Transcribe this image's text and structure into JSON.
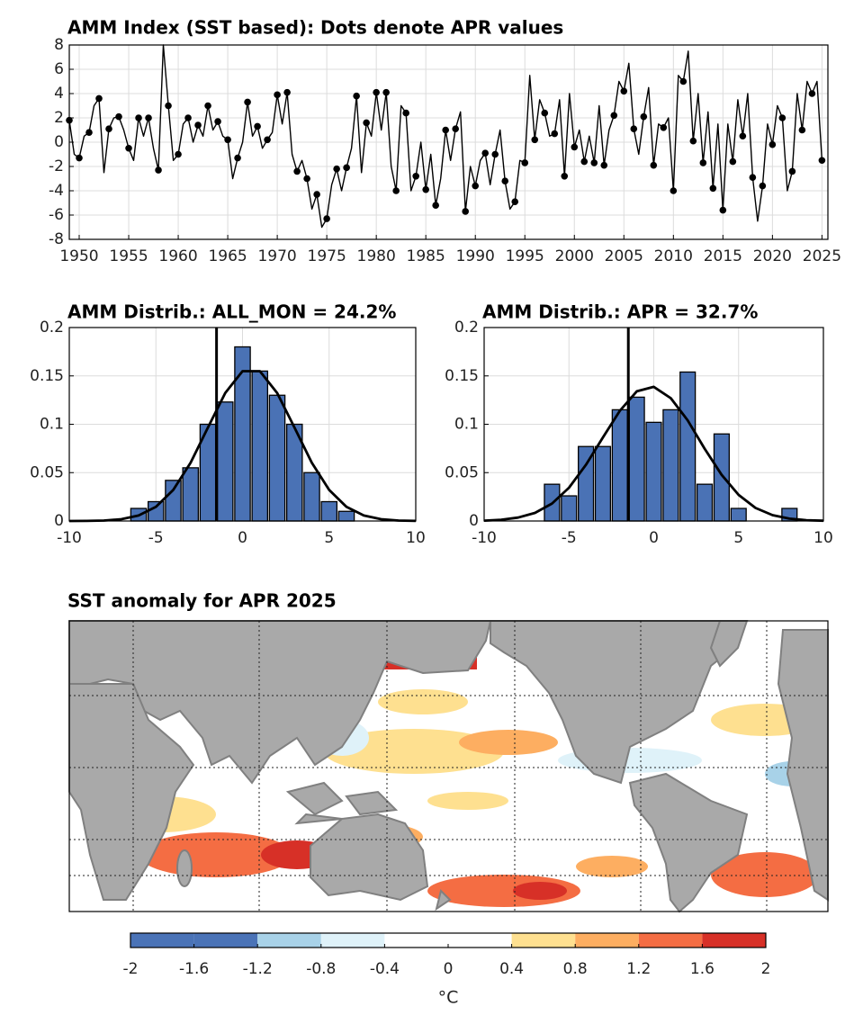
{
  "chart_data": [
    {
      "type": "line",
      "title": "AMM Index (SST based):  Dots denote APR values",
      "xlim": [
        1949,
        2025.6
      ],
      "xticks": [
        1950,
        1955,
        1960,
        1965,
        1970,
        1975,
        1980,
        1985,
        1990,
        1995,
        2000,
        2005,
        2010,
        2015,
        2020,
        2025
      ],
      "ylim": [
        -8,
        8
      ],
      "yticks": [
        -8,
        -6,
        -4,
        -2,
        0,
        2,
        4,
        6,
        8
      ],
      "grid": true,
      "series": [
        {
          "color": "#000000",
          "style": "line",
          "x": [
            1949,
            1949.5,
            1950,
            1950.5,
            1951,
            1951.5,
            1952,
            1952.5,
            1953,
            1953.5,
            1954,
            1954.5,
            1955,
            1955.5,
            1956,
            1956.5,
            1957,
            1957.5,
            1958,
            1958.5,
            1959,
            1959.5,
            1960,
            1960.5,
            1961,
            1961.5,
            1962,
            1962.5,
            1963,
            1963.5,
            1964,
            1964.5,
            1965,
            1965.5,
            1966,
            1966.5,
            1967,
            1967.5,
            1968,
            1968.5,
            1969,
            1969.5,
            1970,
            1970.5,
            1971,
            1971.5,
            1972,
            1972.5,
            1973,
            1973.5,
            1974,
            1974.5,
            1975,
            1975.5,
            1976,
            1976.5,
            1977,
            1977.5,
            1978,
            1978.5,
            1979,
            1979.5,
            1980,
            1980.5,
            1981,
            1981.5,
            1982,
            1982.5,
            1983,
            1983.5,
            1984,
            1984.5,
            1985,
            1985.5,
            1986,
            1986.5,
            1987,
            1987.5,
            1988,
            1988.5,
            1989,
            1989.5,
            1990,
            1990.5,
            1991,
            1991.5,
            1992,
            1992.5,
            1993,
            1993.5,
            1994,
            1994.5,
            1995,
            1995.5,
            1996,
            1996.5,
            1997,
            1997.5,
            1998,
            1998.5,
            1999,
            1999.5,
            2000,
            2000.5,
            2001,
            2001.5,
            2002,
            2002.5,
            2003,
            2003.5,
            2004,
            2004.5,
            2005,
            2005.5,
            2006,
            2006.5,
            2007,
            2007.5,
            2008,
            2008.5,
            2009,
            2009.5,
            2010,
            2010.5,
            2011,
            2011.5,
            2012,
            2012.5,
            2013,
            2013.5,
            2014,
            2014.5,
            2015,
            2015.5,
            2016,
            2016.5,
            2017,
            2017.5,
            2018,
            2018.5,
            2019,
            2019.5,
            2020,
            2020.5,
            2021,
            2021.5,
            2022,
            2022.5,
            2023,
            2023.5,
            2024,
            2024.5,
            2025
          ],
          "values": [
            1.8,
            -1.0,
            -1.3,
            0.5,
            0.8,
            3.0,
            3.6,
            -2.5,
            1.1,
            2.0,
            2.1,
            1.0,
            -0.5,
            -1.5,
            2.0,
            0.5,
            2.0,
            -0.5,
            -2.3,
            8.0,
            3.0,
            -1.5,
            -1.0,
            1.5,
            2.0,
            0.0,
            1.4,
            0.5,
            3.0,
            1.0,
            1.7,
            0.5,
            0.2,
            -3.0,
            -1.3,
            0.0,
            3.3,
            0.5,
            1.3,
            -0.5,
            0.2,
            0.8,
            3.9,
            1.5,
            4.1,
            -1.0,
            -2.4,
            -1.5,
            -3.0,
            -5.5,
            -4.3,
            -7.0,
            -6.3,
            -3.5,
            -2.2,
            -4.0,
            -2.1,
            -0.5,
            3.8,
            -2.5,
            1.6,
            0.5,
            4.1,
            1.0,
            4.1,
            -2.0,
            -4.0,
            3.0,
            2.4,
            -4.0,
            -2.8,
            0.0,
            -3.9,
            -1.0,
            -5.2,
            -3.0,
            1.0,
            -1.5,
            1.1,
            2.5,
            -5.7,
            -2.0,
            -3.6,
            -1.5,
            -0.9,
            -3.5,
            -1.0,
            1.0,
            -3.2,
            -5.5,
            -4.9,
            -1.5,
            -1.7,
            5.5,
            0.2,
            3.5,
            2.4,
            0.5,
            0.7,
            3.5,
            -2.8,
            4.0,
            -0.4,
            1.0,
            -1.6,
            0.5,
            -1.7,
            3.0,
            -1.9,
            1.0,
            2.2,
            5.0,
            4.2,
            6.5,
            1.1,
            -1.0,
            2.1,
            4.5,
            -1.9,
            1.5,
            1.2,
            2.0,
            -4.0,
            5.5,
            5.0,
            7.5,
            0.1,
            4.0,
            -1.7,
            2.5,
            -3.8,
            1.5,
            -5.6,
            1.5,
            -1.6,
            3.5,
            0.5,
            4.0,
            -2.9,
            -6.5,
            -3.6,
            1.5,
            -0.2,
            3.0,
            2.0,
            -4.0,
            -2.4,
            4.0,
            1.0,
            5.0,
            4.0,
            5.0,
            -1.5
          ]
        },
        {
          "color": "#000000",
          "style": "dots",
          "x": [
            1949,
            1950,
            1951,
            1952,
            1953,
            1954,
            1955,
            1956,
            1957,
            1958,
            1959,
            1960,
            1961,
            1962,
            1963,
            1964,
            1965,
            1966,
            1967,
            1968,
            1969,
            1970,
            1971,
            1972,
            1973,
            1974,
            1975,
            1976,
            1977,
            1978,
            1979,
            1980,
            1981,
            1982,
            1983,
            1984,
            1985,
            1986,
            1987,
            1988,
            1989,
            1990,
            1991,
            1992,
            1993,
            1994,
            1995,
            1996,
            1997,
            1998,
            1999,
            2000,
            2001,
            2002,
            2003,
            2004,
            2005,
            2006,
            2007,
            2008,
            2009,
            2010,
            2011,
            2012,
            2013,
            2014,
            2015,
            2016,
            2017,
            2018,
            2019,
            2020,
            2021,
            2022,
            2023,
            2024,
            2025
          ],
          "values": [
            1.8,
            -1.3,
            0.8,
            3.6,
            1.1,
            2.1,
            -0.5,
            2.0,
            2.0,
            -2.3,
            3.0,
            -1.0,
            2.0,
            1.4,
            3.0,
            1.7,
            0.2,
            -1.3,
            3.3,
            1.3,
            0.2,
            3.9,
            4.1,
            -2.4,
            -3.0,
            -4.3,
            -6.3,
            -2.2,
            -2.1,
            3.8,
            1.6,
            4.1,
            4.1,
            -4.0,
            2.4,
            -2.8,
            -3.9,
            -5.2,
            1.0,
            1.1,
            -5.7,
            -3.6,
            -0.9,
            -1.0,
            -3.2,
            -4.9,
            -1.7,
            0.2,
            2.4,
            0.7,
            -2.8,
            -0.4,
            -1.6,
            -1.7,
            -1.9,
            2.2,
            4.2,
            1.1,
            2.1,
            -1.9,
            1.2,
            -4.0,
            5.0,
            0.1,
            -1.7,
            -3.8,
            -5.6,
            -1.6,
            0.5,
            -2.9,
            -3.6,
            -0.2,
            2.0,
            -2.4,
            1.0,
            4.0,
            -1.5
          ]
        }
      ]
    },
    {
      "type": "histogram",
      "title": "AMM Distrib.: ALL_MON = 24.2%",
      "color": "#4a72b5",
      "bins": [
        -6.5,
        -5.5,
        -4.5,
        -3.5,
        -2.5,
        -1.5,
        -0.5,
        0.5,
        1.5,
        2.5,
        3.5,
        4.5,
        5.5,
        6.5
      ],
      "values": [
        0.013,
        0.02,
        0.042,
        0.055,
        0.1,
        0.123,
        0.18,
        0.155,
        0.13,
        0.1,
        0.05,
        0.02,
        0.01
      ],
      "fit": {
        "x": [
          -10,
          -9,
          -8,
          -7,
          -6,
          -5,
          -4,
          -3,
          -2,
          -1,
          0,
          1,
          2,
          3,
          4,
          5,
          6,
          7,
          8,
          9,
          10
        ],
        "values": [
          0,
          0.0001,
          0.0005,
          0.0019,
          0.0057,
          0.0146,
          0.0321,
          0.0602,
          0.0966,
          0.1324,
          0.1549,
          0.1549,
          0.1324,
          0.0966,
          0.0602,
          0.0321,
          0.0146,
          0.0057,
          0.0019,
          0.0005,
          0.0001
        ]
      },
      "vline": -1.5,
      "xlim": [
        -10,
        10
      ],
      "xticks": [
        -10,
        -5,
        0,
        5,
        10
      ],
      "ylim": [
        0,
        0.2
      ],
      "yticks": [
        0,
        0.05,
        0.1,
        0.15,
        0.2
      ],
      "grid": true
    },
    {
      "type": "histogram",
      "title": "AMM Distrib.: APR = 32.7%",
      "color": "#4a72b5",
      "bins": [
        -6.5,
        -5.5,
        -4.5,
        -3.5,
        -2.5,
        -1.5,
        -0.5,
        0.5,
        1.5,
        2.5,
        3.5,
        4.5,
        5.5,
        6.5,
        7.5,
        8.5
      ],
      "values": [
        0.038,
        0.026,
        0.077,
        0.077,
        0.115,
        0.128,
        0.102,
        0.115,
        0.154,
        0.038,
        0.09,
        0.013,
        0,
        0,
        0.013
      ],
      "fit": {
        "x": [
          -10,
          -9,
          -8,
          -7,
          -6,
          -5,
          -4,
          -3,
          -2,
          -1,
          0,
          1,
          2,
          3,
          4,
          5,
          6,
          7,
          8,
          9,
          10
        ],
        "values": [
          0.0004,
          0.0013,
          0.0035,
          0.0084,
          0.018,
          0.0344,
          0.058,
          0.0864,
          0.114,
          0.134,
          0.1387,
          0.127,
          0.104,
          0.0748,
          0.0477,
          0.027,
          0.0135,
          0.006,
          0.0024,
          0.0008,
          0.0003
        ]
      },
      "vline": -1.5,
      "xlim": [
        -10,
        10
      ],
      "xticks": [
        -10,
        -5,
        0,
        5,
        10
      ],
      "ylim": [
        0,
        0.2
      ],
      "yticks": [
        0,
        0.05,
        0.1,
        0.15,
        0.2
      ],
      "grid": true
    },
    {
      "type": "colorbar",
      "xlabel": "°C",
      "xlim": [
        -2,
        2
      ],
      "xticks": [
        -2,
        -1.6,
        -1.2,
        -0.8,
        -0.4,
        0,
        0.4,
        0.8,
        1.2,
        1.6,
        2
      ],
      "colors": [
        "#4a73b7",
        "#4a73b7",
        "#a8d2e8",
        "#dff2f9",
        "#ffffff",
        "#ffffff",
        "#fee090",
        "#fdae61",
        "#f46d43",
        "#d73027"
      ]
    }
  ],
  "map": {
    "title": "SST anomaly for APR 2025"
  }
}
